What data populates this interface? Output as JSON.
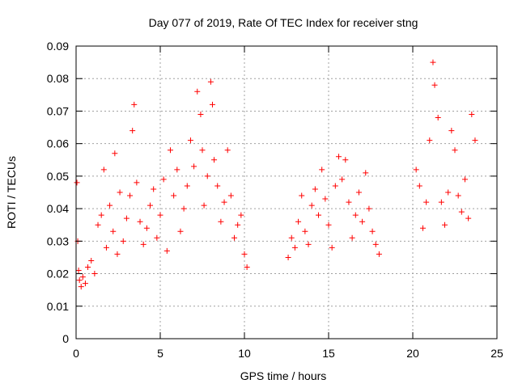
{
  "chart_data": {
    "type": "scatter",
    "title": "Day 077 of 2019, Rate Of TEC Index for receiver stng",
    "xlabel": "GPS time / hours",
    "ylabel": "ROTI / TECUs",
    "xlim": [
      0,
      25
    ],
    "ylim": [
      0,
      0.09
    ],
    "x_ticks": [
      0,
      5,
      10,
      15,
      20,
      25
    ],
    "x_tick_labels": [
      "0",
      "5",
      "10",
      "15",
      "20",
      "25"
    ],
    "y_ticks": [
      0,
      0.01,
      0.02,
      0.03,
      0.04,
      0.05,
      0.06,
      0.07,
      0.08,
      0.09
    ],
    "y_tick_labels": [
      "0",
      "0.01",
      "0.02",
      "0.03",
      "0.04",
      "0.05",
      "0.06",
      "0.07",
      "0.08",
      "0.09"
    ],
    "grid": true,
    "marker": "+",
    "color": "#ff0000",
    "series": [
      {
        "name": "ROTI",
        "x": [
          0.05,
          0.1,
          0.15,
          0.2,
          0.3,
          0.4,
          0.55,
          0.7,
          0.9,
          1.1,
          1.3,
          1.5,
          1.65,
          1.8,
          2.0,
          2.2,
          2.3,
          2.45,
          2.6,
          2.8,
          3.0,
          3.2,
          3.35,
          3.45,
          3.6,
          3.8,
          4.0,
          4.2,
          4.4,
          4.6,
          4.8,
          5.0,
          5.2,
          5.4,
          5.6,
          5.8,
          6.0,
          6.2,
          6.4,
          6.6,
          6.8,
          7.0,
          7.2,
          7.4,
          7.5,
          7.6,
          7.8,
          8.0,
          8.1,
          8.2,
          8.4,
          8.6,
          8.8,
          9.0,
          9.2,
          9.4,
          9.6,
          9.8,
          10.0,
          10.15,
          12.6,
          12.8,
          13.0,
          13.2,
          13.4,
          13.6,
          13.8,
          14.0,
          14.2,
          14.4,
          14.6,
          14.8,
          15.0,
          15.2,
          15.4,
          15.6,
          15.8,
          16.0,
          16.2,
          16.4,
          16.6,
          16.8,
          17.0,
          17.2,
          17.4,
          17.6,
          17.8,
          18.0,
          20.2,
          20.4,
          20.6,
          20.8,
          21.0,
          21.2,
          21.3,
          21.5,
          21.7,
          21.9,
          22.1,
          22.3,
          22.5,
          22.7,
          22.9,
          23.1,
          23.3,
          23.5,
          23.7
        ],
        "y": [
          0.048,
          0.03,
          0.021,
          0.018,
          0.016,
          0.019,
          0.017,
          0.022,
          0.024,
          0.02,
          0.035,
          0.038,
          0.052,
          0.028,
          0.041,
          0.033,
          0.057,
          0.026,
          0.045,
          0.03,
          0.037,
          0.044,
          0.064,
          0.072,
          0.048,
          0.036,
          0.029,
          0.034,
          0.041,
          0.046,
          0.031,
          0.038,
          0.049,
          0.027,
          0.058,
          0.044,
          0.052,
          0.033,
          0.04,
          0.047,
          0.061,
          0.053,
          0.076,
          0.069,
          0.058,
          0.041,
          0.05,
          0.079,
          0.072,
          0.055,
          0.047,
          0.036,
          0.042,
          0.058,
          0.044,
          0.031,
          0.035,
          0.038,
          0.026,
          0.022,
          0.025,
          0.031,
          0.028,
          0.036,
          0.044,
          0.033,
          0.029,
          0.041,
          0.046,
          0.038,
          0.052,
          0.043,
          0.035,
          0.028,
          0.047,
          0.056,
          0.049,
          0.055,
          0.042,
          0.031,
          0.038,
          0.045,
          0.036,
          0.051,
          0.04,
          0.033,
          0.029,
          0.026,
          0.052,
          0.047,
          0.034,
          0.042,
          0.061,
          0.085,
          0.078,
          0.068,
          0.042,
          0.035,
          0.045,
          0.064,
          0.058,
          0.044,
          0.039,
          0.049,
          0.037,
          0.069,
          0.061
        ]
      }
    ]
  }
}
